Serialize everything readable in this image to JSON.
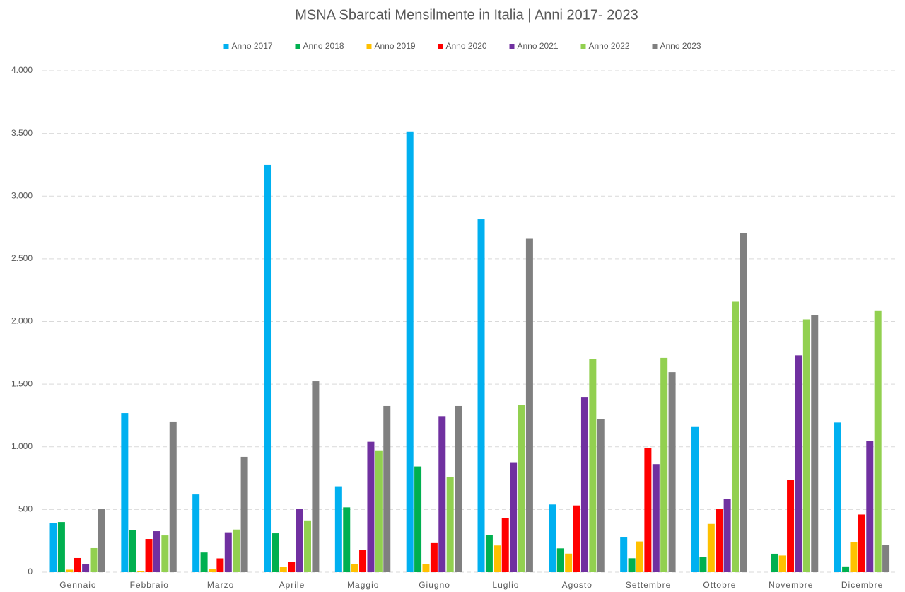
{
  "chart_data": {
    "type": "bar",
    "title": "MSNA Sbarcati Mensilmente in Italia | Anni 2017- 2023",
    "categories": [
      "Gennaio",
      "Febbraio",
      "Marzo",
      "Aprile",
      "Maggio",
      "Giugno",
      "Luglio",
      "Agosto",
      "Settembre",
      "Ottobre",
      "Novembre",
      "Dicembre"
    ],
    "series": [
      {
        "name": "Anno 2017",
        "color": "#00b0f0",
        "values": [
          390,
          1269,
          620,
          3250,
          685,
          3516,
          2815,
          540,
          282,
          1158,
          0,
          1194
        ]
      },
      {
        "name": "Anno 2018",
        "color": "#00b050",
        "values": [
          400,
          333,
          157,
          310,
          517,
          843,
          296,
          190,
          111,
          120,
          147,
          46
        ]
      },
      {
        "name": "Anno 2019",
        "color": "#ffc000",
        "values": [
          20,
          11,
          28,
          45,
          65,
          65,
          213,
          148,
          245,
          385,
          133,
          238
        ]
      },
      {
        "name": "Anno 2020",
        "color": "#ff0000",
        "values": [
          113,
          265,
          110,
          80,
          178,
          232,
          430,
          532,
          990,
          502,
          737,
          460
        ]
      },
      {
        "name": "Anno 2021",
        "color": "#7030a0",
        "values": [
          62,
          327,
          318,
          503,
          1040,
          1245,
          877,
          1393,
          862,
          583,
          1730,
          1045
        ]
      },
      {
        "name": "Anno 2022",
        "color": "#92d050",
        "values": [
          192,
          293,
          340,
          413,
          972,
          760,
          1335,
          1703,
          1710,
          2158,
          2017,
          2083
        ]
      },
      {
        "name": "Anno 2023",
        "color": "#808080",
        "values": [
          502,
          1202,
          920,
          1523,
          1326,
          1326,
          2660,
          1222,
          1596,
          2705,
          2048,
          220
        ]
      }
    ],
    "ylim": [
      0,
      4000
    ],
    "yticks": [
      0,
      500,
      {
        "value": 1000,
        "label": "1.000"
      },
      {
        "value": 1500,
        "label": "1.500"
      },
      {
        "value": 2000,
        "label": "2.000"
      },
      {
        "value": 2500,
        "label": "2.500"
      },
      {
        "value": 3000,
        "label": "3.000"
      },
      {
        "value": 3500,
        "label": "3.500"
      },
      {
        "value": 4000,
        "label": "4.000"
      }
    ],
    "grid": true,
    "legend": "top"
  }
}
